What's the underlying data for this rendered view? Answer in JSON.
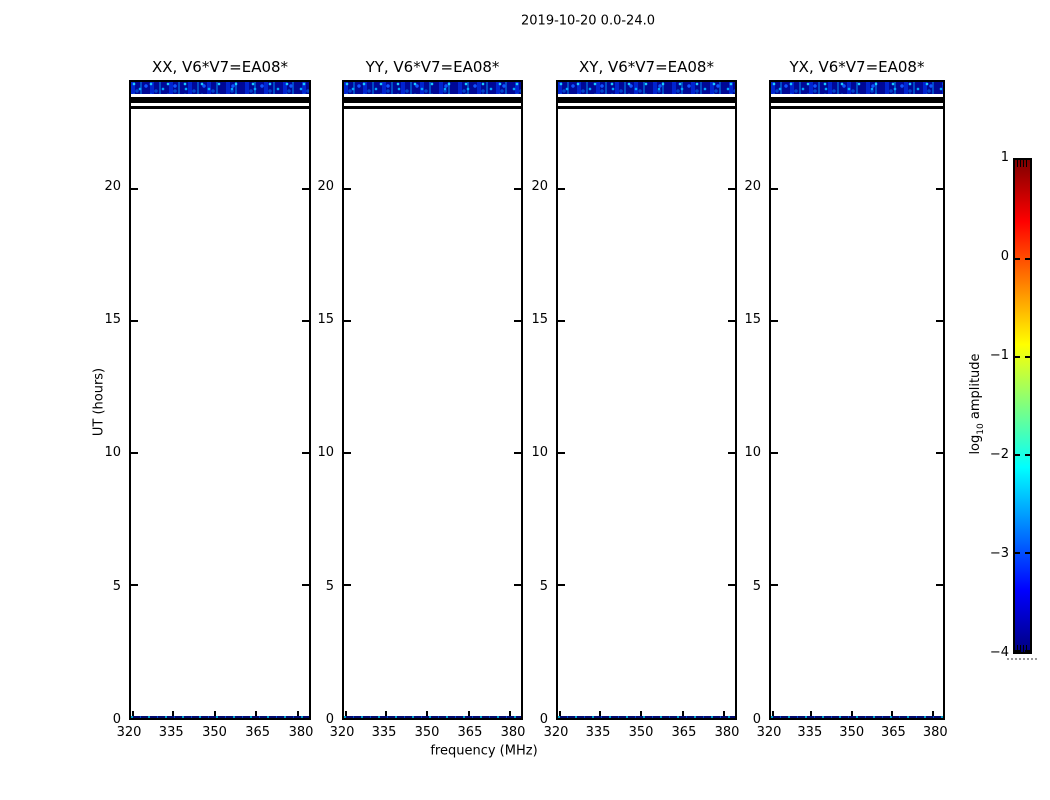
{
  "figure": {
    "suptitle": "2019-10-20 0.0-24.0"
  },
  "axes": {
    "xlabel": "frequency (MHz)",
    "ylabel": "UT (hours)",
    "x_tick_labels": [
      "320",
      "335",
      "350",
      "365",
      "380"
    ],
    "y_tick_labels": [
      "20",
      "15",
      "10",
      "5",
      "0"
    ]
  },
  "panels": [
    {
      "title": "XX, V6*V7=EA08*"
    },
    {
      "title": "YY, V6*V7=EA08*"
    },
    {
      "title": "XY, V6*V7=EA08*"
    },
    {
      "title": "YX, V6*V7=EA08*"
    }
  ],
  "colorbar": {
    "label_prefix": "log",
    "label_sub": "10",
    "label_suffix": " amplitude",
    "tick_labels": [
      "1",
      "0",
      "−1",
      "−2",
      "−3",
      "−4"
    ],
    "colormap": "jet",
    "top_color": "#7f0000",
    "bottom_color": "#00007f"
  },
  "colors": {
    "background": "#ffffff",
    "frame": "#000000",
    "data_band_base": "#000896",
    "data_band_speckle": "#00aaff",
    "flagged": "#000000"
  },
  "chart_data": {
    "type": "heatmap",
    "title": "2019-10-20 0.0-24.0",
    "xlabel": "frequency (MHz)",
    "ylabel": "UT (hours)",
    "xlim": [
      320,
      383
    ],
    "ylim": [
      0,
      24
    ],
    "x_ticks": [
      320,
      335,
      350,
      365,
      380
    ],
    "y_ticks": [
      0,
      5,
      10,
      15,
      20
    ],
    "panels": [
      "XX, V6*V7=EA08*",
      "YY, V6*V7=EA08*",
      "XY, V6*V7=EA08*",
      "YX, V6*V7=EA08*"
    ],
    "colorbar": {
      "label": "log10 amplitude",
      "ticks": [
        1,
        0,
        -1,
        -2,
        -3,
        -4
      ],
      "range": [
        -4,
        1
      ],
      "colormap": "jet"
    },
    "features": [
      {
        "ut_range": [
          23.45,
          24.0
        ],
        "freq_range": [
          320,
          383
        ],
        "panels": "all",
        "description": "speckled blue low-amplitude data band",
        "approx_log10_amplitude": -3.5
      },
      {
        "ut_range": [
          23.05,
          23.3
        ],
        "freq_range": [
          320,
          383
        ],
        "panels": "all",
        "description": "solid black flagged band"
      },
      {
        "ut_range": [
          22.85,
          22.95
        ],
        "freq_range": [
          320,
          383
        ],
        "panels": "all",
        "description": "solid black flagged row"
      },
      {
        "ut_range": [
          0.0,
          0.1
        ],
        "freq_range": [
          320,
          383
        ],
        "panels": "all",
        "description": "thin speckled blue data row",
        "approx_log10_amplitude": -3.5
      },
      {
        "ut_range": [
          0.1,
          22.85
        ],
        "freq_range": [
          320,
          383
        ],
        "panels": "all",
        "description": "blank (no data)"
      }
    ]
  }
}
